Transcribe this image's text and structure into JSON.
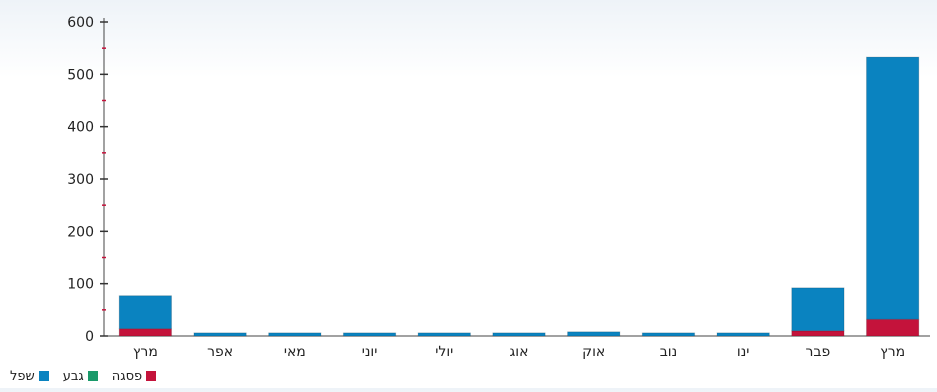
{
  "chart_data": {
    "type": "bar",
    "stacked": true,
    "categories": [
      "מרץ",
      "אפר",
      "מאי",
      "יוני",
      "יולי",
      "אוג",
      "אוק",
      "נוב",
      "ינו",
      "פבר",
      "מרץ"
    ],
    "series": [
      {
        "name": "פסגה",
        "color": "#c4133b",
        "values": [
          14,
          0,
          0,
          0,
          0,
          0,
          0,
          0,
          0,
          10,
          32
        ]
      },
      {
        "name": "גבע",
        "color": "#1a9a6a",
        "values": [
          0,
          0,
          0,
          0,
          0,
          0,
          0,
          0,
          0,
          0,
          0
        ]
      },
      {
        "name": "שפל",
        "color": "#0a83c0",
        "values": [
          63,
          6,
          6,
          6,
          6,
          6,
          8,
          6,
          6,
          82,
          501
        ]
      }
    ],
    "ylim": [
      0,
      600
    ],
    "yticks": [
      0,
      100,
      200,
      300,
      400,
      500,
      600
    ],
    "grid": false,
    "legend_position": "bottom-left"
  }
}
